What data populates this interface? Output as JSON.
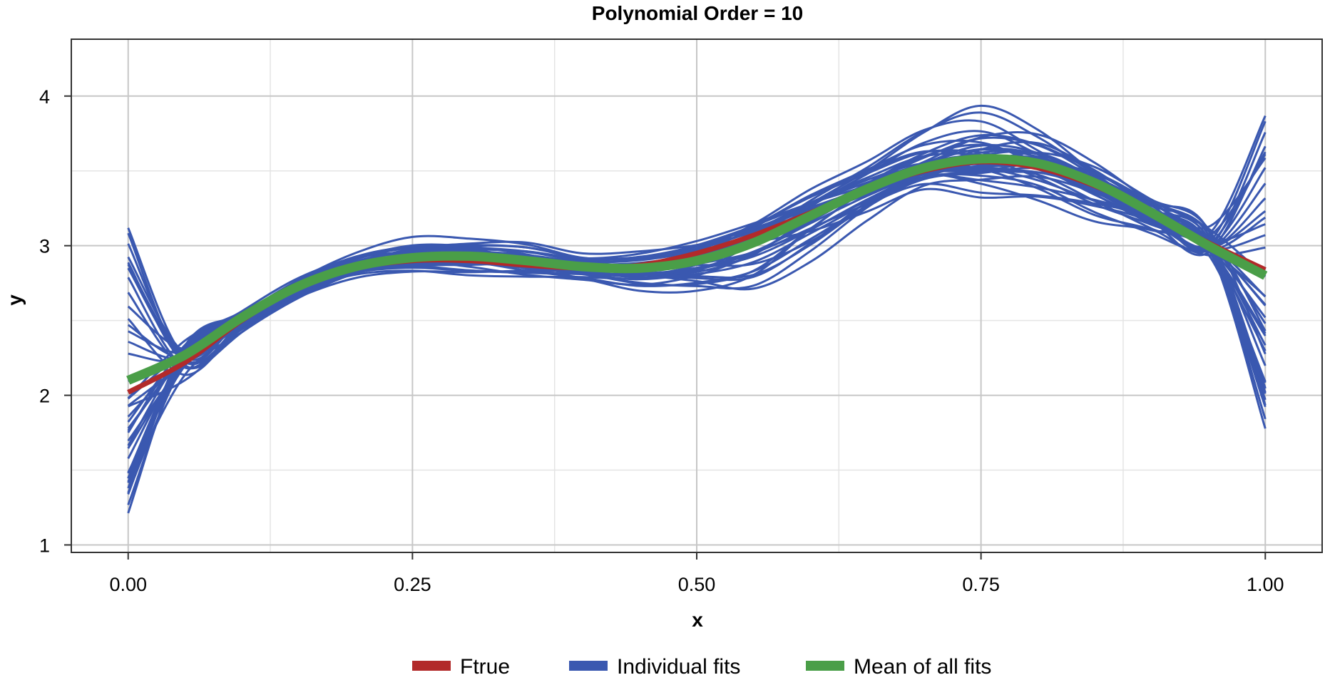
{
  "chart_data": {
    "type": "line",
    "title": "Polynomial Order = 10",
    "xlabel": "x",
    "ylabel": "y",
    "xlim": [
      -0.05,
      1.05
    ],
    "ylim": [
      0.95,
      4.38
    ],
    "x_ticks": [
      0.0,
      0.25,
      0.5,
      0.75,
      1.0
    ],
    "x_tick_labels": [
      "0.00",
      "0.25",
      "0.50",
      "0.75",
      "1.00"
    ],
    "y_ticks": [
      1,
      2,
      3,
      4
    ],
    "y_tick_labels": [
      "1",
      "2",
      "3",
      "4"
    ],
    "grid": true,
    "legend_position": "bottom",
    "legend": [
      {
        "label": "Ftrue",
        "color": "#b22a2a"
      },
      {
        "label": "Individual fits",
        "color": "#3a58b0"
      },
      {
        "label": "Mean of all fits",
        "color": "#4a9e48"
      }
    ],
    "series": [
      {
        "name": "Ftrue",
        "color": "#b22a2a",
        "x": [
          0.0,
          0.05,
          0.1,
          0.15,
          0.2,
          0.25,
          0.3,
          0.35,
          0.4,
          0.45,
          0.5,
          0.55,
          0.6,
          0.65,
          0.7,
          0.75,
          0.8,
          0.85,
          0.9,
          0.95,
          1.0
        ],
        "y": [
          2.02,
          2.22,
          2.5,
          2.72,
          2.85,
          2.9,
          2.9,
          2.87,
          2.85,
          2.87,
          2.95,
          3.07,
          3.22,
          3.38,
          3.5,
          3.56,
          3.52,
          3.4,
          3.22,
          3.02,
          2.84
        ]
      },
      {
        "name": "Mean of all fits",
        "color": "#4a9e48",
        "x": [
          0.0,
          0.05,
          0.1,
          0.15,
          0.2,
          0.25,
          0.3,
          0.35,
          0.4,
          0.45,
          0.5,
          0.55,
          0.6,
          0.65,
          0.7,
          0.75,
          0.8,
          0.85,
          0.9,
          0.95,
          1.0
        ],
        "y": [
          2.1,
          2.27,
          2.52,
          2.73,
          2.86,
          2.92,
          2.93,
          2.9,
          2.86,
          2.85,
          2.9,
          3.02,
          3.2,
          3.38,
          3.52,
          3.58,
          3.55,
          3.42,
          3.22,
          3.0,
          2.8
        ]
      }
    ],
    "individual_fits": {
      "name": "Individual fits",
      "color": "#3a58b0",
      "count": 40,
      "x": [
        0.0,
        0.05,
        0.1,
        0.15,
        0.2,
        0.25,
        0.3,
        0.35,
        0.4,
        0.45,
        0.5,
        0.55,
        0.6,
        0.65,
        0.7,
        0.75,
        0.8,
        0.85,
        0.9,
        0.95,
        1.0
      ],
      "y_min": [
        1.11,
        2.0,
        2.35,
        2.58,
        2.74,
        2.78,
        2.74,
        2.72,
        2.7,
        2.6,
        2.55,
        2.5,
        2.75,
        3.05,
        3.28,
        3.15,
        3.1,
        2.98,
        2.98,
        2.9,
        1.66
      ],
      "y_max": [
        3.14,
        2.45,
        2.62,
        2.85,
        3.02,
        3.12,
        3.1,
        3.08,
        2.98,
        3.02,
        3.12,
        3.28,
        3.48,
        3.65,
        3.95,
        4.23,
        4.1,
        3.75,
        3.42,
        3.25,
        3.89
      ]
    }
  }
}
